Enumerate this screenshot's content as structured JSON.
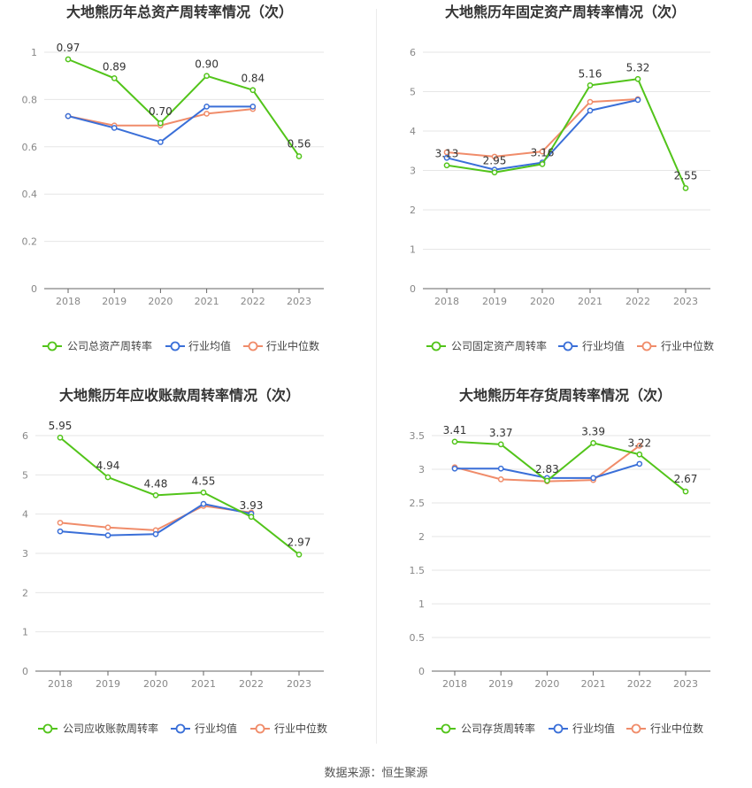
{
  "source_label": "数据来源：恒生聚源",
  "colors": {
    "company": "#52c41a",
    "avg": "#3a6fd8",
    "median": "#f08c6a",
    "grid": "#e6e6e6",
    "axis": "#888888"
  },
  "chart_data": [
    {
      "type": "line",
      "title": "大地熊历年总资产周转率情况（次）",
      "categories": [
        "2018",
        "2019",
        "2020",
        "2021",
        "2022",
        "2023"
      ],
      "ylim": [
        0,
        1.0
      ],
      "yticks": [
        "0",
        "0.2",
        "0.4",
        "0.6",
        "0.8",
        "1"
      ],
      "ytick_values": [
        0,
        0.2,
        0.4,
        0.6,
        0.8,
        1.0
      ],
      "series": [
        {
          "name": "公司总资产周转率",
          "values": [
            0.97,
            0.89,
            0.7,
            0.9,
            0.84,
            0.56
          ],
          "labels": [
            "0.97",
            "0.89",
            "0.70",
            "0.90",
            "0.84",
            "0.56"
          ]
        },
        {
          "name": "行业均值",
          "values": [
            0.73,
            0.68,
            0.62,
            0.77,
            0.77,
            null
          ]
        },
        {
          "name": "行业中位数",
          "values": [
            0.73,
            0.69,
            0.69,
            0.74,
            0.76,
            null
          ]
        }
      ]
    },
    {
      "type": "line",
      "title": "大地熊历年固定资产周转率情况（次）",
      "categories": [
        "2018",
        "2019",
        "2020",
        "2021",
        "2022",
        "2023"
      ],
      "ylim": [
        0,
        6
      ],
      "yticks": [
        "0",
        "1",
        "2",
        "3",
        "4",
        "5",
        "6"
      ],
      "ytick_values": [
        0,
        1,
        2,
        3,
        4,
        5,
        6
      ],
      "series": [
        {
          "name": "公司固定资产周转率",
          "values": [
            3.13,
            2.95,
            3.16,
            5.16,
            5.32,
            2.55
          ],
          "labels": [
            "3.13",
            "2.95",
            "3.16",
            "5.16",
            "5.32",
            "2.55"
          ]
        },
        {
          "name": "行业均值",
          "values": [
            3.32,
            3.02,
            3.2,
            4.52,
            4.79,
            null
          ]
        },
        {
          "name": "行业中位数",
          "values": [
            3.46,
            3.35,
            3.48,
            4.74,
            4.81,
            null
          ]
        }
      ]
    },
    {
      "type": "line",
      "title": "大地熊历年应收账款周转率情况（次）",
      "categories": [
        "2018",
        "2019",
        "2020",
        "2021",
        "2022",
        "2023"
      ],
      "ylim": [
        0,
        6
      ],
      "yticks": [
        "0",
        "1",
        "2",
        "3",
        "4",
        "5",
        "6"
      ],
      "ytick_values": [
        0,
        1,
        2,
        3,
        4,
        5,
        6
      ],
      "series": [
        {
          "name": "公司应收账款周转率",
          "values": [
            5.95,
            4.94,
            4.48,
            4.55,
            3.93,
            2.97
          ],
          "labels": [
            "5.95",
            "4.94",
            "4.48",
            "4.55",
            "3.93",
            "2.97"
          ]
        },
        {
          "name": "行业均值",
          "values": [
            3.56,
            3.46,
            3.49,
            4.26,
            4.01,
            null
          ]
        },
        {
          "name": "行业中位数",
          "values": [
            3.78,
            3.66,
            3.59,
            4.21,
            4.04,
            null
          ]
        }
      ]
    },
    {
      "type": "line",
      "title": "大地熊历年存货周转率情况（次）",
      "categories": [
        "2018",
        "2019",
        "2020",
        "2021",
        "2022",
        "2023"
      ],
      "ylim": [
        0,
        3.5
      ],
      "yticks": [
        "0",
        "0.5",
        "1",
        "1.5",
        "2",
        "2.5",
        "3",
        "3.5"
      ],
      "ytick_values": [
        0,
        0.5,
        1.0,
        1.5,
        2.0,
        2.5,
        3.0,
        3.5
      ],
      "series": [
        {
          "name": "公司存货周转率",
          "values": [
            3.41,
            3.37,
            2.83,
            3.39,
            3.22,
            2.67
          ],
          "labels": [
            "3.41",
            "3.37",
            "2.83",
            "3.39",
            "3.22",
            "2.67"
          ]
        },
        {
          "name": "行业均值",
          "values": [
            3.01,
            3.01,
            2.87,
            2.87,
            3.08,
            null
          ]
        },
        {
          "name": "行业中位数",
          "values": [
            3.03,
            2.85,
            2.82,
            2.84,
            3.35,
            null
          ]
        }
      ]
    }
  ]
}
